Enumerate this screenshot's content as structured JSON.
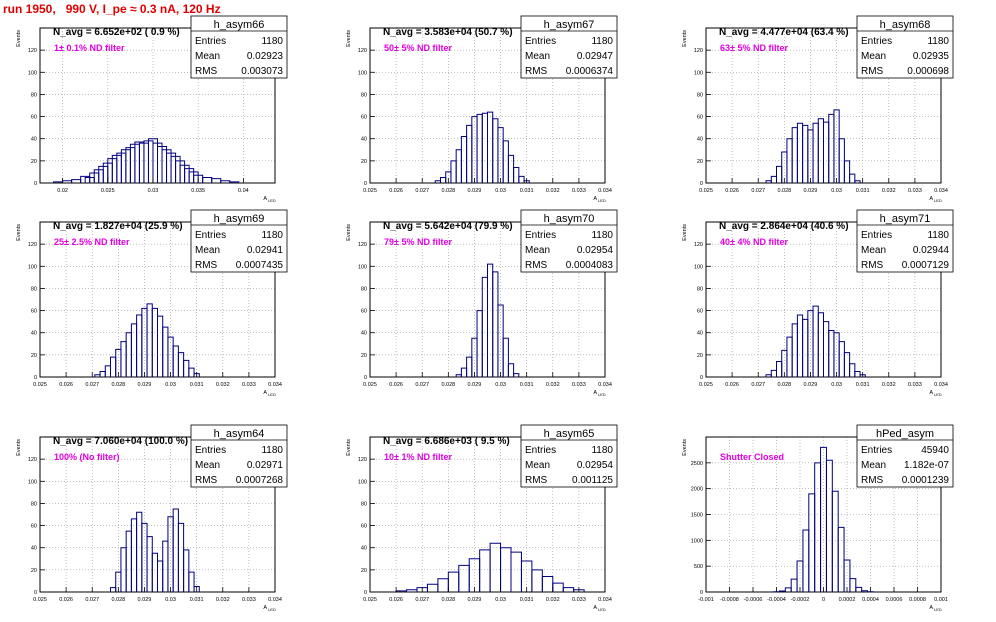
{
  "run_title": "run 1950,   990 V, I_pe ≈ 0.3 nA, 120 Hz",
  "colors": {
    "title": "#e00000",
    "histogram": "#000080",
    "annotation": "#e000e0",
    "grid": "#9a9a9a"
  },
  "stats_labels": {
    "entries": "Entries",
    "mean": "Mean",
    "rms": "RMS"
  },
  "y_axis_label": "Events",
  "x_axis_label": "A",
  "x_axis_subscript": "LED",
  "chart_data": [
    {
      "type": "bar",
      "name": "h_asym66",
      "navg": "N_avg = 6.652e+02 ( 0.9 %)",
      "filter": "1± 0.1% ND filter",
      "stats": {
        "entries": "1180",
        "mean": "0.02923",
        "rms": "0.003073"
      },
      "xlim": [
        0.0175,
        0.0435
      ],
      "ylim": [
        0,
        140
      ],
      "xticks": [
        0.02,
        0.025,
        0.03,
        0.035,
        0.04
      ],
      "xticklabels": [
        "0.02",
        "0.025",
        "0.03",
        "0.035",
        "0.04"
      ],
      "yticks": [
        0,
        20,
        40,
        60,
        80,
        100,
        120
      ],
      "x": [
        0.0195,
        0.0205,
        0.0215,
        0.0225,
        0.023,
        0.0235,
        0.024,
        0.0245,
        0.025,
        0.0255,
        0.026,
        0.0265,
        0.027,
        0.0275,
        0.028,
        0.0285,
        0.029,
        0.0295,
        0.03,
        0.0305,
        0.031,
        0.0315,
        0.032,
        0.0325,
        0.033,
        0.0335,
        0.034,
        0.0345,
        0.035,
        0.036,
        0.037,
        0.038,
        0.039
      ],
      "values": [
        1,
        2,
        3,
        6,
        5,
        9,
        12,
        15,
        18,
        22,
        25,
        27,
        30,
        32,
        35,
        37,
        36,
        38,
        40,
        36,
        33,
        30,
        27,
        24,
        20,
        16,
        13,
        10,
        7,
        5,
        4,
        2,
        1
      ]
    },
    {
      "type": "bar",
      "name": "h_asym67",
      "navg": "N_avg = 3.583e+04 (50.7 %)",
      "filter": "50± 5% ND filter",
      "stats": {
        "entries": "1180",
        "mean": "0.02947",
        "rms": "0.0006374"
      },
      "xlim": [
        0.025,
        0.034
      ],
      "ylim": [
        0,
        140
      ],
      "xticks": [
        0.025,
        0.026,
        0.027,
        0.028,
        0.029,
        0.03,
        0.031,
        0.032,
        0.033,
        0.034
      ],
      "xticklabels": [
        "0.025",
        "0.026",
        "0.027",
        "0.028",
        "0.029",
        "0.03",
        "0.031",
        "0.032",
        "0.033",
        "0.034"
      ],
      "yticks": [
        0,
        20,
        40,
        60,
        80,
        100,
        120
      ],
      "x": [
        0.0276,
        0.0278,
        0.028,
        0.0282,
        0.0284,
        0.0286,
        0.0288,
        0.029,
        0.0292,
        0.0294,
        0.0296,
        0.0298,
        0.03,
        0.0302,
        0.0304,
        0.0306,
        0.0308,
        0.031
      ],
      "values": [
        2,
        5,
        10,
        20,
        30,
        42,
        52,
        60,
        62,
        63,
        64,
        58,
        50,
        38,
        25,
        14,
        6,
        2
      ]
    },
    {
      "type": "bar",
      "name": "h_asym68",
      "navg": "N_avg = 4.477e+04 (63.4 %)",
      "filter": "63± 5% ND filter",
      "stats": {
        "entries": "1180",
        "mean": "0.02935",
        "rms": "0.000698"
      },
      "xlim": [
        0.025,
        0.034
      ],
      "ylim": [
        0,
        140
      ],
      "xticks": [
        0.025,
        0.026,
        0.027,
        0.028,
        0.029,
        0.03,
        0.031,
        0.032,
        0.033,
        0.034
      ],
      "xticklabels": [
        "0.025",
        "0.026",
        "0.027",
        "0.028",
        "0.029",
        "0.03",
        "0.031",
        "0.032",
        "0.033",
        "0.034"
      ],
      "yticks": [
        0,
        20,
        40,
        60,
        80,
        100,
        120
      ],
      "x": [
        0.0274,
        0.0276,
        0.0278,
        0.028,
        0.0282,
        0.0284,
        0.0286,
        0.0288,
        0.029,
        0.0292,
        0.0294,
        0.0296,
        0.0298,
        0.03,
        0.0302,
        0.0304,
        0.0306,
        0.0308
      ],
      "values": [
        2,
        6,
        15,
        28,
        40,
        50,
        54,
        52,
        48,
        54,
        58,
        55,
        62,
        66,
        40,
        20,
        8,
        2
      ]
    },
    {
      "type": "bar",
      "name": "h_asym69",
      "navg": "N_avg = 1.827e+04 (25.9 %)",
      "filter": "25± 2.5% ND filter",
      "stats": {
        "entries": "1180",
        "mean": "0.02941",
        "rms": "0.0007435"
      },
      "xlim": [
        0.025,
        0.034
      ],
      "ylim": [
        0,
        140
      ],
      "xticks": [
        0.025,
        0.026,
        0.027,
        0.028,
        0.029,
        0.03,
        0.031,
        0.032,
        0.033,
        0.034
      ],
      "xticklabels": [
        "0.025",
        "0.026",
        "0.027",
        "0.028",
        "0.029",
        "0.03",
        "0.031",
        "0.032",
        "0.033",
        "0.034"
      ],
      "yticks": [
        0,
        20,
        40,
        60,
        80,
        100,
        120
      ],
      "x": [
        0.0272,
        0.0274,
        0.0276,
        0.0278,
        0.028,
        0.0282,
        0.0284,
        0.0286,
        0.0288,
        0.029,
        0.0292,
        0.0294,
        0.0296,
        0.0298,
        0.03,
        0.0302,
        0.0304,
        0.0306,
        0.0308,
        0.031
      ],
      "values": [
        2,
        5,
        10,
        18,
        25,
        32,
        40,
        48,
        56,
        62,
        66,
        62,
        55,
        45,
        36,
        28,
        22,
        15,
        8,
        3
      ]
    },
    {
      "type": "bar",
      "name": "h_asym70",
      "navg": "N_avg = 5.642e+04 (79.9 %)",
      "filter": "79± 5% ND filter",
      "stats": {
        "entries": "1180",
        "mean": "0.02954",
        "rms": "0.0004083"
      },
      "xlim": [
        0.025,
        0.034
      ],
      "ylim": [
        0,
        140
      ],
      "xticks": [
        0.025,
        0.026,
        0.027,
        0.028,
        0.029,
        0.03,
        0.031,
        0.032,
        0.033,
        0.034
      ],
      "xticklabels": [
        "0.025",
        "0.026",
        "0.027",
        "0.028",
        "0.029",
        "0.03",
        "0.031",
        "0.032",
        "0.033",
        "0.034"
      ],
      "yticks": [
        0,
        20,
        40,
        60,
        80,
        100,
        120
      ],
      "x": [
        0.0284,
        0.0286,
        0.0288,
        0.029,
        0.0292,
        0.0294,
        0.0296,
        0.0298,
        0.03,
        0.0302,
        0.0304,
        0.0306
      ],
      "values": [
        2,
        8,
        18,
        35,
        60,
        90,
        102,
        95,
        65,
        35,
        12,
        3
      ]
    },
    {
      "type": "bar",
      "name": "h_asym71",
      "navg": "N_avg = 2.864e+04 (40.6 %)",
      "filter": "40± 4% ND filter",
      "stats": {
        "entries": "1180",
        "mean": "0.02944",
        "rms": "0.0007129"
      },
      "xlim": [
        0.025,
        0.034
      ],
      "ylim": [
        0,
        140
      ],
      "xticks": [
        0.025,
        0.026,
        0.027,
        0.028,
        0.029,
        0.03,
        0.031,
        0.032,
        0.033,
        0.034
      ],
      "xticklabels": [
        "0.025",
        "0.026",
        "0.027",
        "0.028",
        "0.029",
        "0.03",
        "0.031",
        "0.032",
        "0.033",
        "0.034"
      ],
      "yticks": [
        0,
        20,
        40,
        60,
        80,
        100,
        120
      ],
      "x": [
        0.0274,
        0.0276,
        0.0278,
        0.028,
        0.0282,
        0.0284,
        0.0286,
        0.0288,
        0.029,
        0.0292,
        0.0294,
        0.0296,
        0.0298,
        0.03,
        0.0302,
        0.0304,
        0.0306,
        0.0308,
        0.031
      ],
      "values": [
        2,
        6,
        14,
        24,
        36,
        48,
        56,
        52,
        60,
        64,
        58,
        50,
        42,
        40,
        32,
        22,
        12,
        5,
        2
      ]
    },
    {
      "type": "bar",
      "name": "h_asym64",
      "navg": "N_avg = 7.060e+04 (100.0 %)",
      "filter": "100% (No filter)",
      "stats": {
        "entries": "1180",
        "mean": "0.02971",
        "rms": "0.0007268"
      },
      "xlim": [
        0.025,
        0.034
      ],
      "ylim": [
        0,
        140
      ],
      "xticks": [
        0.025,
        0.026,
        0.027,
        0.028,
        0.029,
        0.03,
        0.031,
        0.032,
        0.033,
        0.034
      ],
      "xticklabels": [
        "0.025",
        "0.026",
        "0.027",
        "0.028",
        "0.029",
        "0.03",
        "0.031",
        "0.032",
        "0.033",
        "0.034"
      ],
      "yticks": [
        0,
        20,
        40,
        60,
        80,
        100,
        120
      ],
      "x": [
        0.0278,
        0.028,
        0.0282,
        0.0284,
        0.0286,
        0.0288,
        0.029,
        0.0292,
        0.0294,
        0.0296,
        0.0298,
        0.03,
        0.0302,
        0.0304,
        0.0306,
        0.0308,
        0.031
      ],
      "values": [
        4,
        18,
        40,
        55,
        66,
        72,
        62,
        50,
        35,
        28,
        46,
        68,
        75,
        62,
        38,
        18,
        5
      ]
    },
    {
      "type": "bar",
      "name": "h_asym65",
      "navg": "N_avg = 6.686e+03 ( 9.5 %)",
      "filter": "10± 1% ND filter",
      "stats": {
        "entries": "1180",
        "mean": "0.02954",
        "rms": "0.001125"
      },
      "xlim": [
        0.025,
        0.034
      ],
      "ylim": [
        0,
        140
      ],
      "xticks": [
        0.025,
        0.026,
        0.027,
        0.028,
        0.029,
        0.03,
        0.031,
        0.032,
        0.033,
        0.034
      ],
      "xticklabels": [
        "0.025",
        "0.026",
        "0.027",
        "0.028",
        "0.029",
        "0.03",
        "0.031",
        "0.032",
        "0.033",
        "0.034"
      ],
      "yticks": [
        0,
        20,
        40,
        60,
        80,
        100,
        120
      ],
      "x": [
        0.0262,
        0.0266,
        0.027,
        0.0274,
        0.0278,
        0.0282,
        0.0286,
        0.029,
        0.0294,
        0.0298,
        0.0302,
        0.0306,
        0.031,
        0.0314,
        0.0318,
        0.0322,
        0.0326,
        0.033
      ],
      "values": [
        1,
        2,
        4,
        7,
        12,
        18,
        24,
        30,
        38,
        44,
        40,
        36,
        28,
        20,
        14,
        8,
        4,
        2
      ]
    },
    {
      "type": "bar",
      "name": "hPed_asym",
      "navg": "",
      "filter": "Shutter Closed",
      "stats": {
        "entries": "45940",
        "mean": "1.182e-07",
        "rms": "0.0001239"
      },
      "xlim": [
        -0.001,
        0.001
      ],
      "ylim": [
        0,
        3000
      ],
      "xticks": [
        -0.001,
        -0.0008,
        -0.0006,
        -0.0004,
        -0.0002,
        0,
        0.0002,
        0.0004,
        0.0006,
        0.0008,
        0.001
      ],
      "xticklabels": [
        "-0.001",
        "-0.0008",
        "-0.0006",
        "-0.0004",
        "-0.0002",
        "0",
        "0.0002",
        "0.0004",
        "0.0006",
        "0.0008",
        "0.001"
      ],
      "yticks": [
        0,
        500,
        1000,
        1500,
        2000,
        2500
      ],
      "x": [
        -0.0004,
        -0.00035,
        -0.0003,
        -0.00025,
        -0.0002,
        -0.00015,
        -0.0001,
        -5e-05,
        0,
        5e-05,
        0.0001,
        0.00015,
        0.0002,
        0.00025,
        0.0003,
        0.00035,
        0.0004
      ],
      "values": [
        5,
        20,
        80,
        250,
        600,
        1200,
        1900,
        2500,
        2800,
        2550,
        1950,
        1250,
        620,
        260,
        90,
        25,
        5
      ]
    }
  ]
}
